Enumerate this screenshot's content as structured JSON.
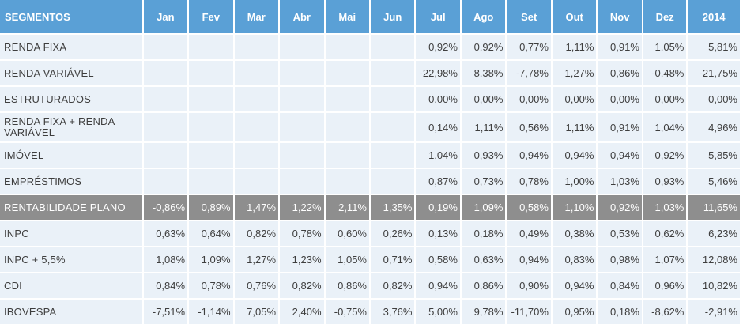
{
  "table": {
    "headers": [
      "SEGMENTOS",
      "Jan",
      "Fev",
      "Mar",
      "Abr",
      "Mai",
      "Jun",
      "Jul",
      "Ago",
      "Set",
      "Out",
      "Nov",
      "Dez",
      "2014"
    ],
    "rows": [
      {
        "segment": "RENDA FIXA",
        "values": [
          "",
          "",
          "",
          "",
          "",
          "",
          "0,92%",
          "0,92%",
          "0,77%",
          "1,11%",
          "0,91%",
          "1,05%",
          "5,81%"
        ]
      },
      {
        "segment": "RENDA VARIÁVEL",
        "values": [
          "",
          "",
          "",
          "",
          "",
          "",
          "-22,98%",
          "8,38%",
          "-7,78%",
          "1,27%",
          "0,86%",
          "-0,48%",
          "-21,75%"
        ]
      },
      {
        "segment": "ESTRUTURADOS",
        "values": [
          "",
          "",
          "",
          "",
          "",
          "",
          "0,00%",
          "0,00%",
          "0,00%",
          "0,00%",
          "0,00%",
          "0,00%",
          "0,00%"
        ]
      },
      {
        "segment": "RENDA FIXA + RENDA VARIÁVEL",
        "values": [
          "",
          "",
          "",
          "",
          "",
          "",
          "0,14%",
          "1,11%",
          "0,56%",
          "1,11%",
          "0,91%",
          "1,04%",
          "4,96%"
        ]
      },
      {
        "segment": "IMÓVEL",
        "values": [
          "",
          "",
          "",
          "",
          "",
          "",
          "1,04%",
          "0,93%",
          "0,94%",
          "0,94%",
          "0,94%",
          "0,92%",
          "5,85%"
        ]
      },
      {
        "segment": "EMPRÉSTIMOS",
        "values": [
          "",
          "",
          "",
          "",
          "",
          "",
          "0,87%",
          "0,73%",
          "0,78%",
          "1,00%",
          "1,03%",
          "0,93%",
          "5,46%"
        ]
      },
      {
        "segment": "RENTABILIDADE PLANO",
        "values": [
          "-0,86%",
          "0,89%",
          "1,47%",
          "1,22%",
          "2,11%",
          "1,35%",
          "0,19%",
          "1,09%",
          "0,58%",
          "1,10%",
          "0,92%",
          "1,03%",
          "11,65%"
        ]
      },
      {
        "segment": "INPC",
        "values": [
          "0,63%",
          "0,64%",
          "0,82%",
          "0,78%",
          "0,60%",
          "0,26%",
          "0,13%",
          "0,18%",
          "0,49%",
          "0,38%",
          "0,53%",
          "0,62%",
          "6,23%"
        ]
      },
      {
        "segment": "INPC + 5,5%",
        "values": [
          "1,08%",
          "1,09%",
          "1,27%",
          "1,23%",
          "1,05%",
          "0,71%",
          "0,58%",
          "0,63%",
          "0,94%",
          "0,83%",
          "0,98%",
          "1,07%",
          "12,08%"
        ]
      },
      {
        "segment": "CDI",
        "values": [
          "0,84%",
          "0,78%",
          "0,76%",
          "0,82%",
          "0,86%",
          "0,82%",
          "0,94%",
          "0,86%",
          "0,90%",
          "0,94%",
          "0,84%",
          "0,96%",
          "10,82%"
        ]
      },
      {
        "segment": "IBOVESPA",
        "values": [
          "-7,51%",
          "-1,14%",
          "7,05%",
          "2,40%",
          "-0,75%",
          "3,76%",
          "5,00%",
          "9,78%",
          "-11,70%",
          "0,95%",
          "0,18%",
          "-8,62%",
          "-2,91%"
        ]
      }
    ]
  },
  "colors": {
    "header_bg": "#5aa0d6",
    "cell_bg": "#eaf1f8",
    "highlight_bg": "#8e8e8e",
    "text": "#3e3e3e"
  }
}
